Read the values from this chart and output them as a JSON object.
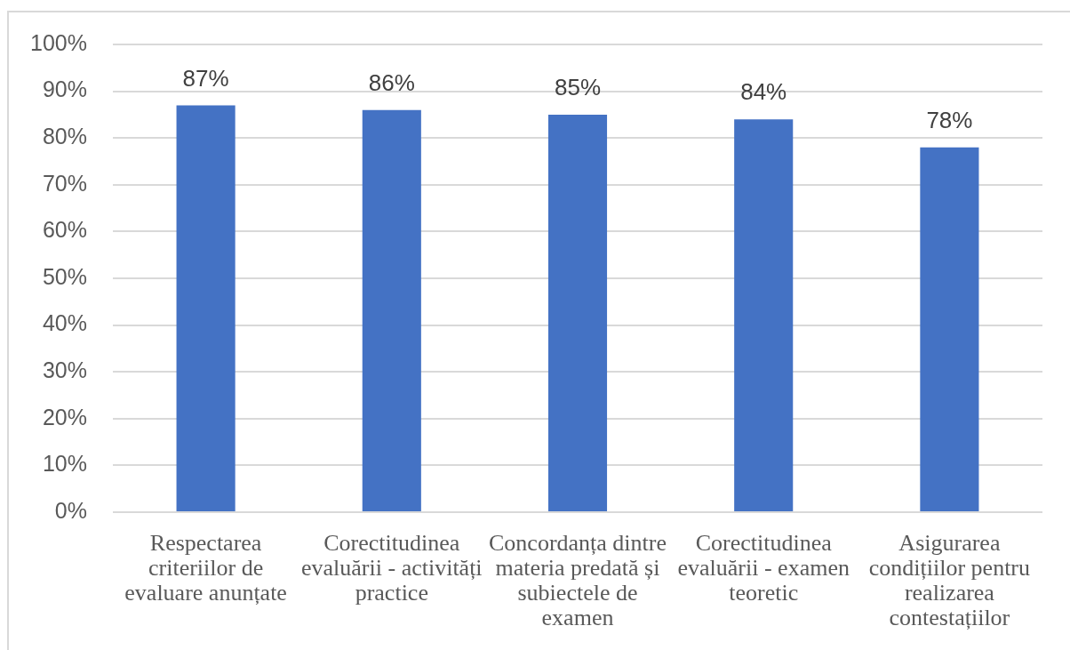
{
  "chart_data": {
    "type": "bar",
    "categories": [
      "Respectarea criteriilor de evaluare anunțate",
      "Corectitudinea evaluării - activități practice",
      "Concordanța dintre materia predată și subiectele de examen",
      "Corectitudinea evaluării - examen teoretic",
      "Asigurarea condițiilor pentru realizarea contestațiilor"
    ],
    "values": [
      87,
      86,
      85,
      84,
      78
    ],
    "color": "#4472c4",
    "value_labels": [
      "87%",
      "86%",
      "85%",
      "84%",
      "78%"
    ],
    "ylim": [
      0,
      100
    ],
    "yticks": [
      {
        "value": 0,
        "label": "0%"
      },
      {
        "value": 10,
        "label": "10%"
      },
      {
        "value": 20,
        "label": "20%"
      },
      {
        "value": 30,
        "label": "30%"
      },
      {
        "value": 40,
        "label": "40%"
      },
      {
        "value": 50,
        "label": "50%"
      },
      {
        "value": 60,
        "label": "60%"
      },
      {
        "value": 70,
        "label": "70%"
      },
      {
        "value": 80,
        "label": "80%"
      },
      {
        "value": 90,
        "label": "90%"
      },
      {
        "value": 100,
        "label": "100%"
      }
    ],
    "grid": "y"
  }
}
